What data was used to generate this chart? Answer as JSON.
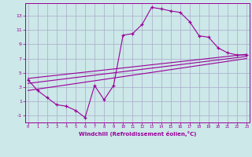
{
  "xlabel": "Windchill (Refroidissement éolien,°C)",
  "bg_color": "#cce8e8",
  "grid_color": "#aaaacc",
  "line_color": "#990099",
  "xticks": [
    0,
    1,
    2,
    3,
    4,
    5,
    6,
    7,
    8,
    9,
    10,
    11,
    12,
    13,
    14,
    15,
    16,
    17,
    18,
    19,
    20,
    21,
    22,
    23
  ],
  "yticks": [
    -1,
    1,
    3,
    5,
    7,
    9,
    11,
    13
  ],
  "xlim": [
    -0.3,
    23.3
  ],
  "ylim": [
    -2.0,
    14.8
  ],
  "main_x": [
    0,
    1,
    2,
    3,
    4,
    5,
    6,
    7,
    8,
    9,
    10,
    11,
    12,
    13,
    14,
    15,
    16,
    17,
    18,
    19,
    20,
    21,
    22,
    23
  ],
  "main_y": [
    4.0,
    2.5,
    1.5,
    0.5,
    0.3,
    -0.3,
    -1.3,
    3.2,
    1.2,
    3.2,
    10.3,
    10.5,
    11.8,
    14.2,
    14.0,
    13.7,
    13.5,
    12.2,
    10.2,
    10.0,
    8.5,
    7.8,
    7.5,
    7.5
  ],
  "line1_x": [
    0,
    23
  ],
  "line1_y": [
    3.5,
    7.3
  ],
  "line2_x": [
    0,
    23
  ],
  "line2_y": [
    4.2,
    7.6
  ],
  "line3_x": [
    0,
    23
  ],
  "line3_y": [
    2.5,
    7.0
  ]
}
